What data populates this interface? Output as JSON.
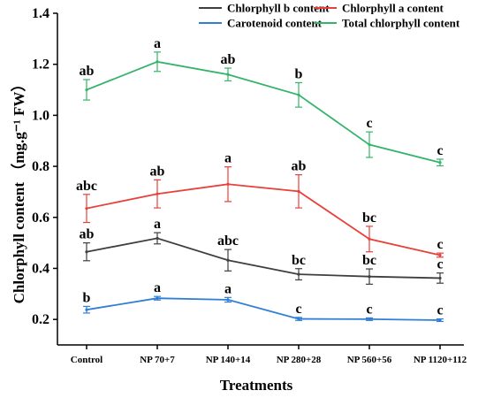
{
  "chart_data": {
    "type": "line",
    "xlabel": "Treatments",
    "ylabel": "Chlorphyll content （mg.g⁻¹ FW）",
    "ylim": [
      0.1,
      1.4
    ],
    "yticks": [
      "0.2",
      "0.4",
      "0.6",
      "0.8",
      "1.0",
      "1.2",
      "1.4"
    ],
    "categories": [
      "Control",
      "NP 70+7",
      "NP 140+14",
      "NP 280+28",
      "NP 560+56",
      "NP 1120+112"
    ],
    "legend_position": "top",
    "series": [
      {
        "name": "Chlorphyll b content",
        "color": "#3f3f3f",
        "values": [
          0.465,
          0.518,
          0.432,
          0.377,
          0.368,
          0.362
        ],
        "errors": [
          0.035,
          0.022,
          0.042,
          0.022,
          0.03,
          0.02
        ],
        "letters": [
          "ab",
          "a",
          "abc",
          "bc",
          "bc",
          "c"
        ]
      },
      {
        "name": "Chlorphyll a content",
        "color": "#e8403a",
        "values": [
          0.635,
          0.692,
          0.73,
          0.702,
          0.515,
          0.452
        ],
        "errors": [
          0.055,
          0.055,
          0.068,
          0.065,
          0.05,
          0.008
        ],
        "letters": [
          "abc",
          "ab",
          "a",
          "ab",
          "bc",
          "c"
        ]
      },
      {
        "name": "Carotenoid content",
        "color": "#2f7fd6",
        "values": [
          0.238,
          0.283,
          0.277,
          0.202,
          0.201,
          0.197
        ],
        "errors": [
          0.013,
          0.007,
          0.009,
          0.006,
          0.005,
          0.005
        ],
        "letters": [
          "b",
          "a",
          "a",
          "c",
          "c",
          "c"
        ]
      },
      {
        "name": "Total chlorphyll content",
        "color": "#36b36a",
        "values": [
          1.1,
          1.21,
          1.16,
          1.08,
          0.885,
          0.815
        ],
        "errors": [
          0.04,
          0.038,
          0.025,
          0.048,
          0.05,
          0.013
        ],
        "letters": [
          "ab",
          "a",
          "ab",
          "b",
          "c",
          "c"
        ]
      }
    ]
  }
}
